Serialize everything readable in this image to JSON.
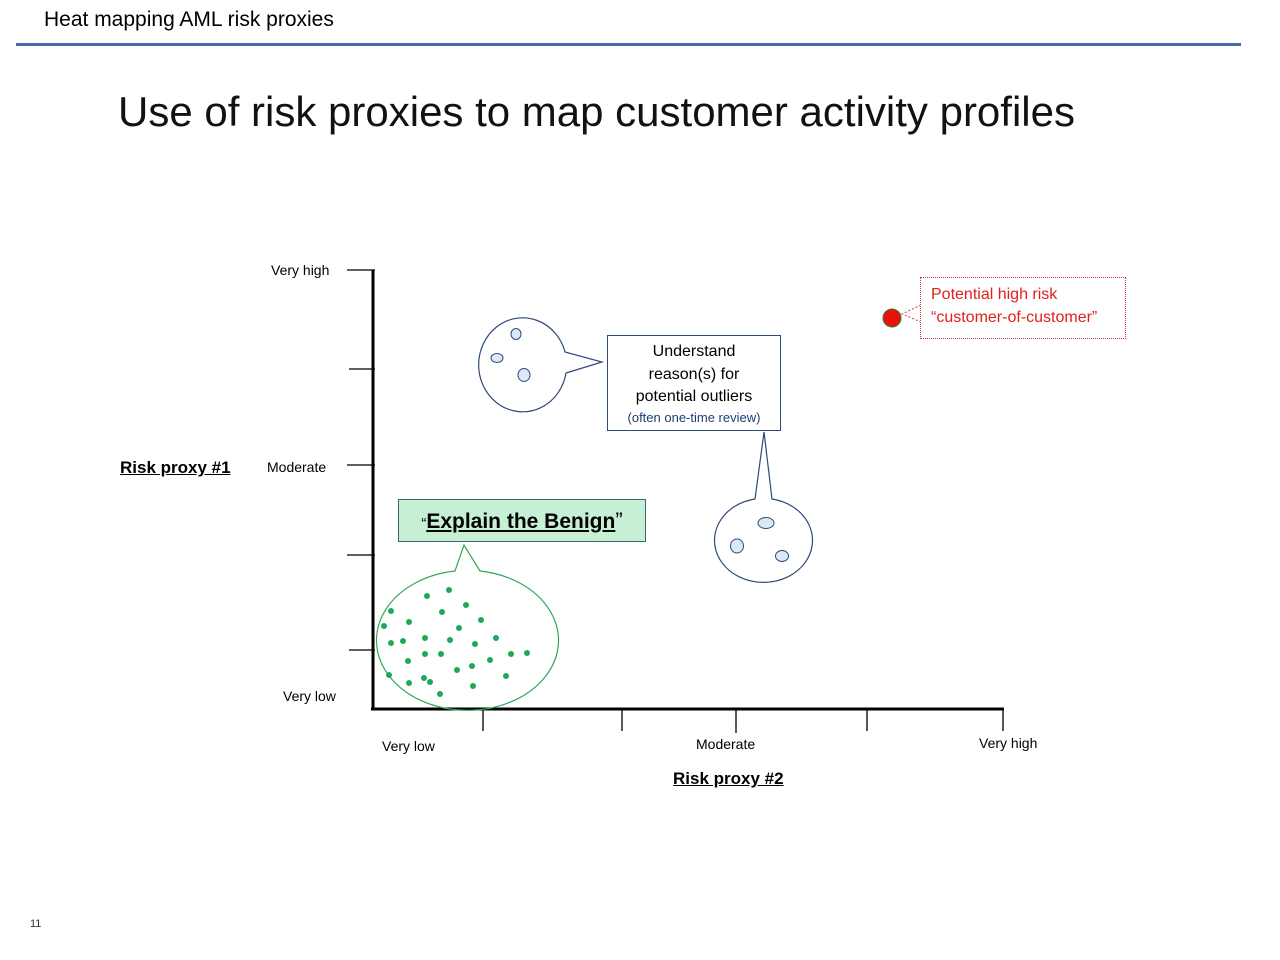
{
  "header": {
    "title": "Heat mapping AML risk proxies"
  },
  "slide": {
    "title": "Use of risk proxies to map customer activity profiles",
    "page_number": "11"
  },
  "y_axis": {
    "title": "Risk proxy #1",
    "labels": {
      "very_high": "Very high",
      "moderate": "Moderate",
      "very_low": "Very low"
    }
  },
  "x_axis": {
    "title": "Risk proxy #2",
    "labels": {
      "very_low": "Very low",
      "moderate": "Moderate",
      "very_high": "Very high"
    }
  },
  "callouts": {
    "outliers": {
      "line1": "Understand",
      "line2": "reason(s) for",
      "line3": "potential outliers",
      "note": "(often one-time review)"
    },
    "high_risk": {
      "line1": "Potential high risk",
      "line2": "“customer-of-customer”"
    },
    "benign": {
      "open_quote": "“",
      "text": "Explain the Benign",
      "close_quote": "”"
    }
  },
  "colors": {
    "axis": "#000000",
    "header_rule": "#4a6aae",
    "cluster_dot": "#1fa85a",
    "cluster_outline": "#2ea85a",
    "outlier_outline": "#2e4a7a",
    "outlier_fill": "#dde8f6",
    "high_risk_dot": "#e8120c",
    "high_risk_text": "#e0201b",
    "benign_fill": "#c6efd6"
  }
}
